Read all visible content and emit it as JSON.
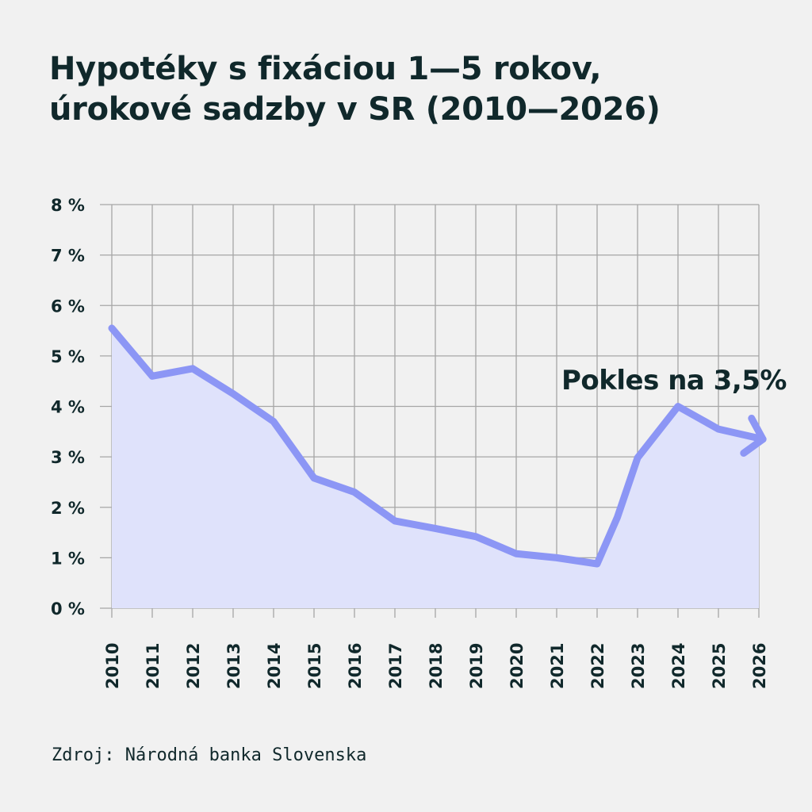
{
  "title": {
    "line1": "Hypotéky s fixáciou 1—5 rokov,",
    "line2": "úrokové sadzby v SR (2010—2026)"
  },
  "source": "Zdroj: Národná banka Slovenska",
  "colors": {
    "line": "#8c96f5",
    "fill": "#dfe2fb",
    "grid": "#a6a6a6",
    "text": "#10282b",
    "background": "#f1f1f1"
  },
  "chart_data": {
    "type": "area",
    "x_ticks": [
      "2010",
      "2011",
      "2012",
      "2013",
      "2014",
      "2015",
      "2016",
      "2017",
      "2018",
      "2019",
      "2020",
      "2021",
      "2022",
      "2023",
      "2024",
      "2025",
      "2026"
    ],
    "y_ticks": [
      "0 %",
      "1 %",
      "2 %",
      "3 %",
      "4 %",
      "5 %",
      "6 %",
      "7 %",
      "8 %"
    ],
    "ylim": [
      0,
      8
    ],
    "xlim": [
      2010,
      2026
    ],
    "grid": true,
    "series": [
      {
        "x": [
          2010,
          2011,
          2012,
          2013,
          2014,
          2015,
          2016,
          2017,
          2018,
          2019,
          2020,
          2021,
          2022,
          2022.5,
          2023,
          2024,
          2025,
          2026.1
        ],
        "y": [
          5.55,
          4.6,
          4.75,
          4.25,
          3.7,
          2.58,
          2.3,
          1.73,
          1.58,
          1.42,
          1.08,
          1.0,
          0.88,
          1.8,
          2.98,
          4.0,
          3.55,
          3.35
        ]
      }
    ],
    "annotation": {
      "text": "Pokles na 3,5%",
      "x": 2024,
      "y": 4.4
    }
  }
}
